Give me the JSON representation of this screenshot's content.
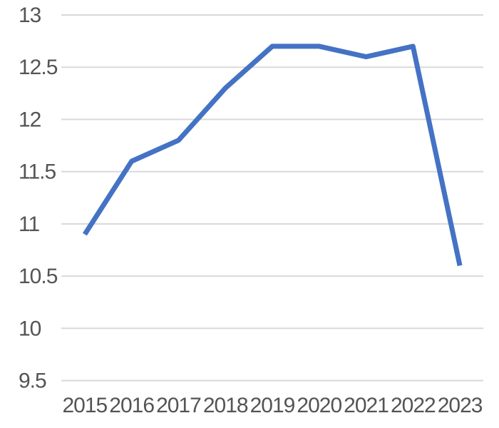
{
  "chart_data": {
    "type": "line",
    "title": "",
    "xlabel": "",
    "ylabel": "",
    "categories": [
      "2015",
      "2016",
      "2017",
      "2018",
      "2019",
      "2020",
      "2021",
      "2022",
      "2023"
    ],
    "values": [
      10.9,
      11.6,
      11.8,
      12.3,
      12.7,
      12.7,
      12.6,
      12.7,
      10.6
    ],
    "ylim": [
      9.5,
      13
    ],
    "ytick_step": 0.5,
    "y_tick_labels": [
      "9.5",
      "10",
      "10.5",
      "11",
      "11.5",
      "12",
      "12.5",
      "13"
    ],
    "grid": true,
    "legend": "none",
    "colors": {
      "line": "#4472C4",
      "gridline": "#D9D9D9",
      "axis_text": "#545454",
      "background": "#FFFFFF"
    }
  }
}
